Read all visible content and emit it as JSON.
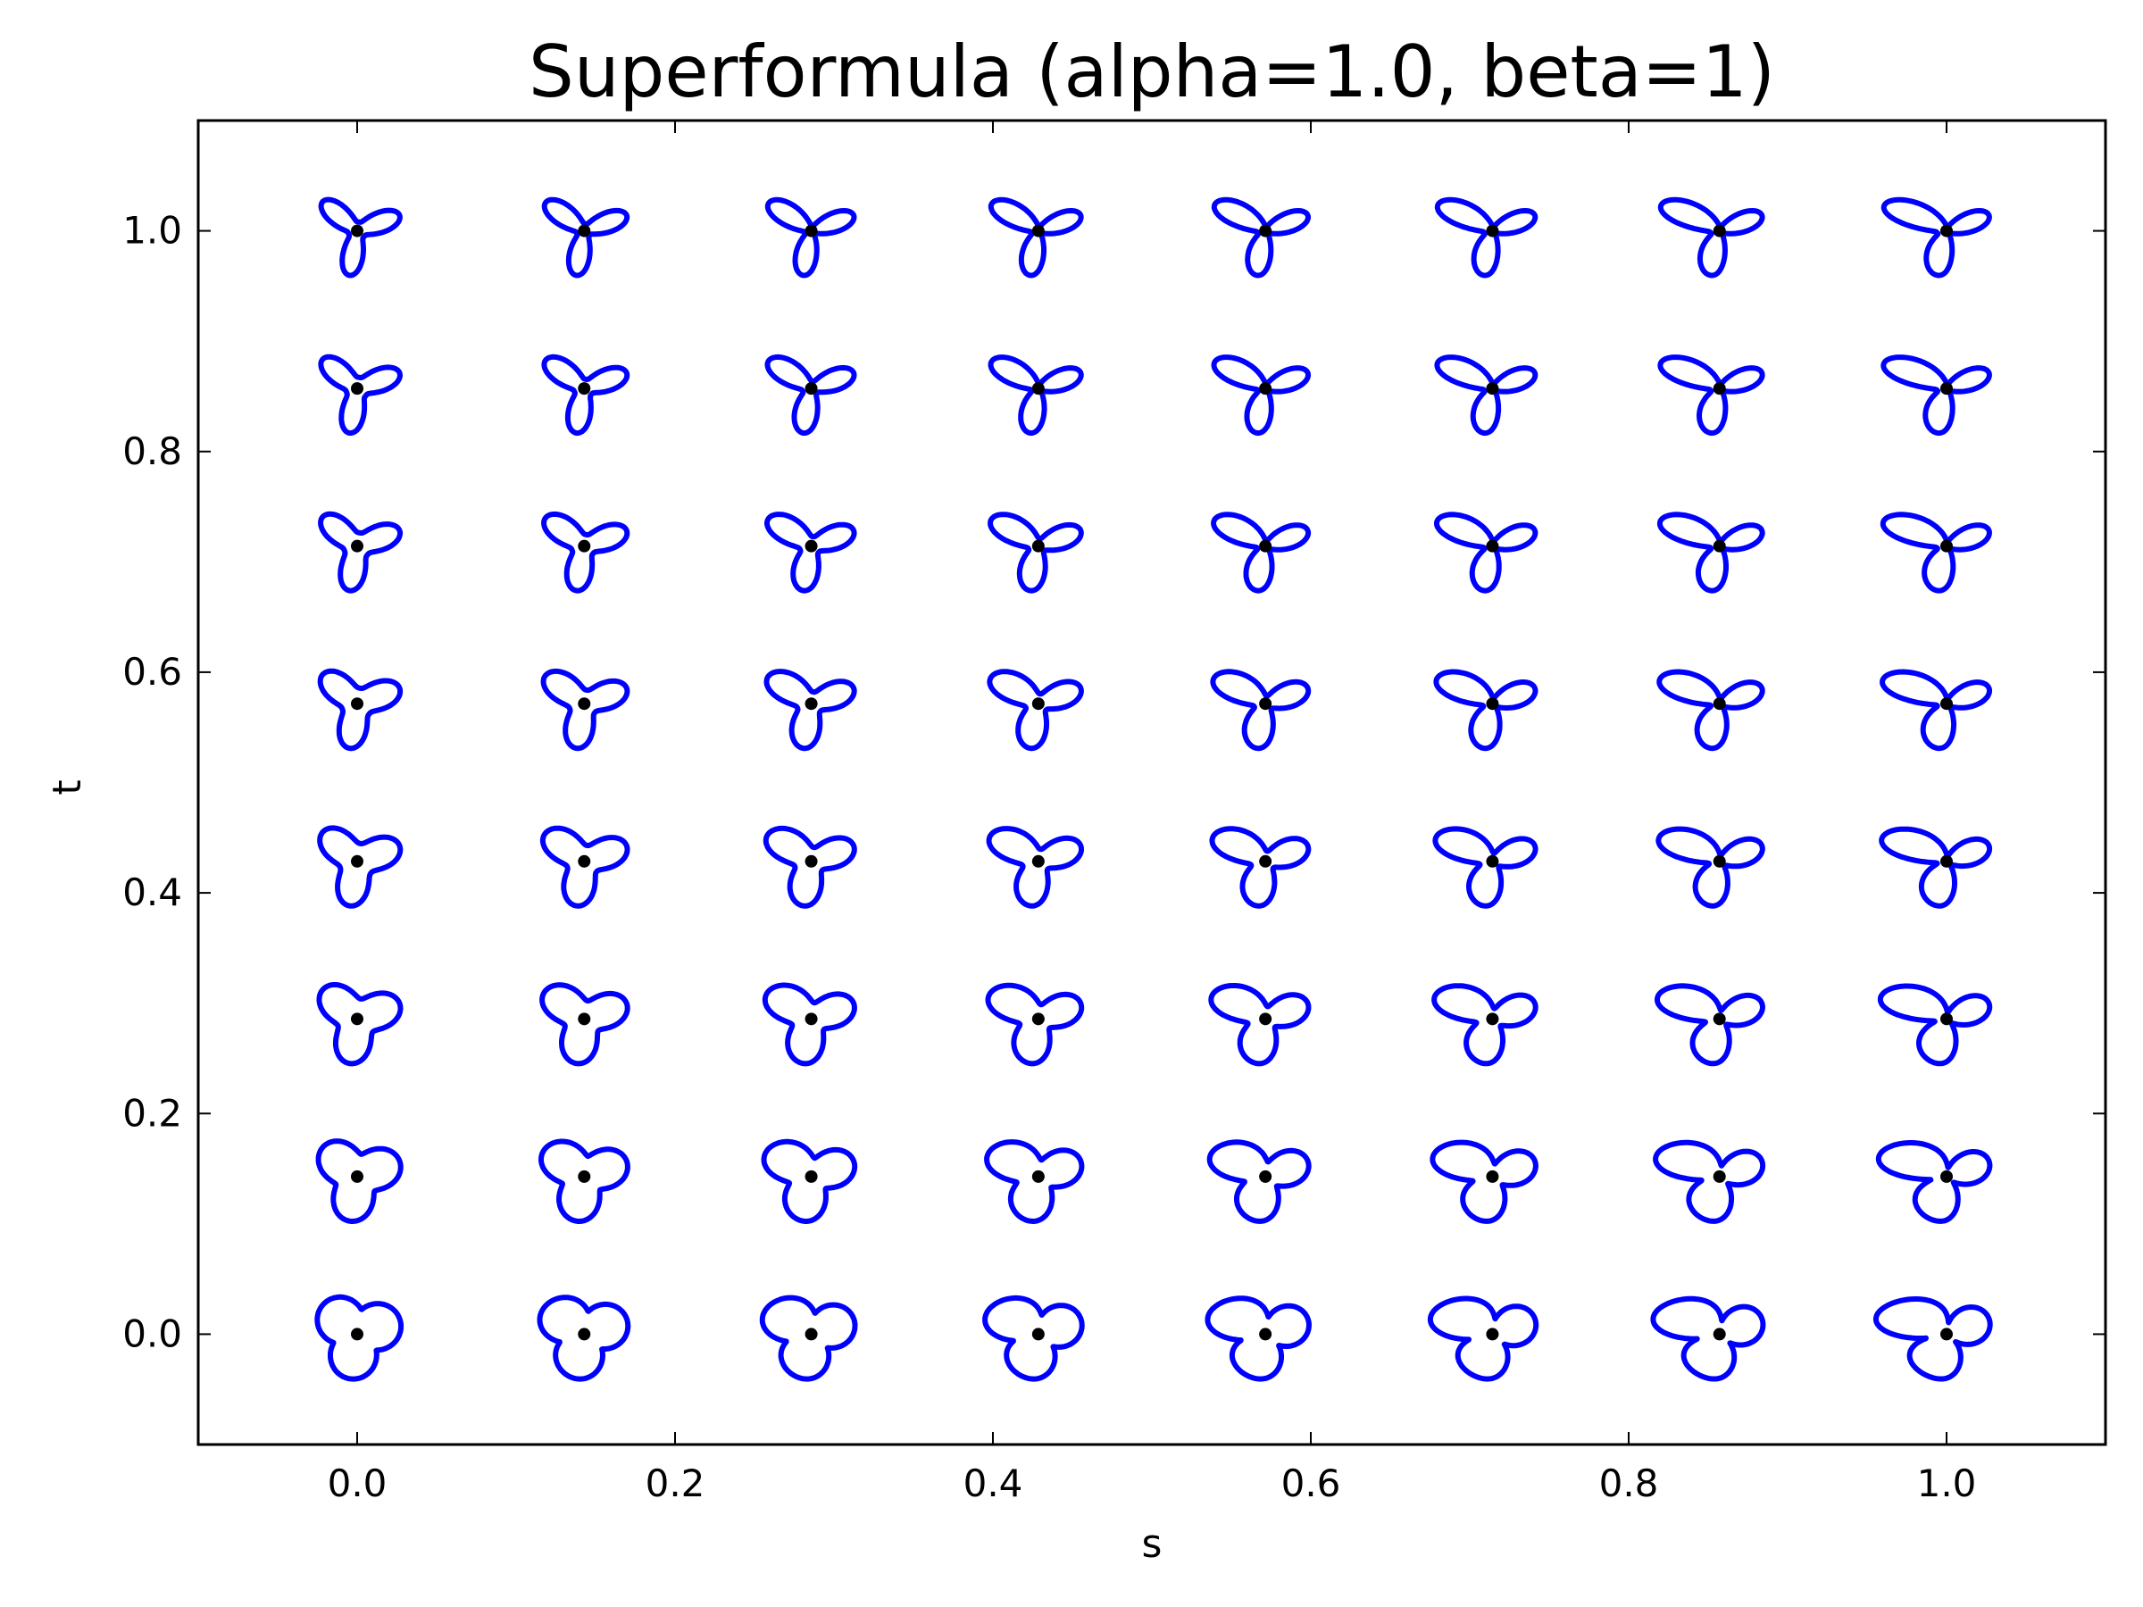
{
  "chart_data": {
    "type": "scatter",
    "title": "Superformula (alpha=1.0, beta=1)",
    "xlabel": "s",
    "ylabel": "t",
    "xlim": [
      -0.1,
      1.1
    ],
    "ylim": [
      -0.1,
      1.1
    ],
    "xticks": [
      0.0,
      0.2,
      0.4,
      0.6,
      0.8,
      1.0
    ],
    "xtick_labels": [
      "0.0",
      "0.2",
      "0.4",
      "0.6",
      "0.8",
      "1.0"
    ],
    "yticks": [
      0.0,
      0.2,
      0.4,
      0.6,
      0.8,
      1.0
    ],
    "ytick_labels": [
      "0.0",
      "0.2",
      "0.4",
      "0.6",
      "0.8",
      "1.0"
    ],
    "grid": false,
    "s_values": [
      0.0,
      0.142857,
      0.285714,
      0.428571,
      0.571429,
      0.714286,
      0.857143,
      1.0
    ],
    "t_values": [
      0.0,
      0.142857,
      0.285714,
      0.428571,
      0.571429,
      0.714286,
      0.857143,
      1.0
    ],
    "point_color": "#000000",
    "curve_color": "#0000ff",
    "curve_description": "superformula closed curve drawn around each (s, t) point; three-lobed shape that elongates into thin petals as s and t increase"
  }
}
